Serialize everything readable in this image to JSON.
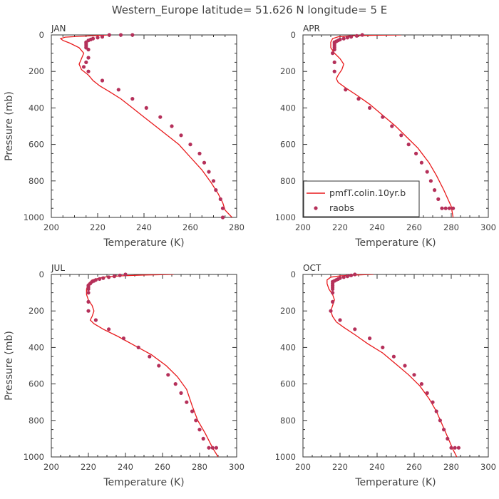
{
  "title": "Western_Europe  latitude= 51.626 N longitude= 5 E",
  "colors": {
    "model": "#e8191b",
    "obs": "#b5305a",
    "axis": "#333333"
  },
  "legend": {
    "model_label": "pmfT.colin.10yr.b",
    "obs_label": "raobs",
    "placement": "lower-left of APR panel"
  },
  "chart_data": [
    {
      "type": "line",
      "panel": "JAN",
      "xlabel": "Temperature (K)",
      "ylabel": "Pressure (mb)",
      "xlim": [
        200,
        280
      ],
      "ylim": [
        1000,
        0
      ],
      "xticks": [
        "200",
        "220",
        "240",
        "260",
        "280"
      ],
      "yticks": [
        "0",
        "200",
        "400",
        "600",
        "800",
        "1000"
      ],
      "series": [
        {
          "name": "pmfT.colin.10yr.b",
          "kind": "line",
          "x": [
            225,
            212,
            206,
            204,
            205,
            208,
            212,
            214,
            213,
            212,
            213,
            216,
            218,
            221,
            225,
            230,
            235,
            240,
            245,
            250,
            255,
            260,
            265,
            269,
            272,
            274,
            275,
            278
          ],
          "y": [
            0,
            8,
            12,
            20,
            30,
            45,
            70,
            100,
            130,
            160,
            190,
            220,
            250,
            280,
            310,
            350,
            400,
            450,
            500,
            550,
            600,
            670,
            740,
            810,
            870,
            920,
            960,
            1000
          ]
        },
        {
          "name": "raobs",
          "kind": "points",
          "x": [
            235,
            230,
            225,
            222,
            220,
            218,
            217,
            216,
            215,
            215,
            215,
            215,
            216,
            216,
            215,
            214,
            216,
            222,
            229,
            235,
            241,
            247,
            252,
            256,
            260,
            264,
            266,
            268,
            270,
            271,
            273,
            274,
            274
          ],
          "y": [
            0,
            0,
            0,
            10,
            15,
            20,
            25,
            30,
            40,
            50,
            60,
            70,
            80,
            125,
            150,
            175,
            200,
            250,
            300,
            350,
            400,
            450,
            500,
            550,
            600,
            650,
            700,
            750,
            800,
            850,
            900,
            950,
            1000
          ]
        }
      ]
    },
    {
      "type": "line",
      "panel": "APR",
      "xlabel": "Temperature (K)",
      "ylabel": "",
      "xlim": [
        200,
        300
      ],
      "ylim": [
        1000,
        0
      ],
      "xticks": [
        "200",
        "220",
        "240",
        "260",
        "280",
        "300"
      ],
      "yticks": [
        "0",
        "200",
        "400",
        "600",
        "800",
        "1000"
      ],
      "series": [
        {
          "name": "pmfT.colin.10yr.b",
          "kind": "line",
          "x": [
            253,
            238,
            225,
            219,
            216,
            215,
            215,
            217,
            220,
            222,
            221,
            219,
            218,
            219,
            223,
            229,
            236,
            243,
            250,
            256,
            262,
            268,
            272,
            276,
            280,
            281
          ],
          "y": [
            0,
            2,
            5,
            10,
            20,
            40,
            70,
            100,
            130,
            160,
            190,
            220,
            240,
            260,
            290,
            330,
            380,
            440,
            500,
            560,
            620,
            700,
            770,
            850,
            940,
            1000
          ]
        },
        {
          "name": "raobs",
          "kind": "points",
          "x": [
            232,
            229,
            226,
            224,
            222,
            220,
            219,
            218,
            217,
            217,
            217,
            217,
            217,
            216,
            217,
            217,
            223,
            230,
            236,
            243,
            248,
            253,
            257,
            261,
            264,
            267,
            269,
            271,
            273,
            275,
            277,
            279,
            281
          ],
          "y": [
            0,
            5,
            10,
            15,
            20,
            25,
            30,
            35,
            40,
            50,
            60,
            70,
            80,
            100,
            150,
            200,
            300,
            350,
            400,
            450,
            500,
            550,
            600,
            650,
            700,
            750,
            800,
            850,
            900,
            950,
            950,
            950,
            950
          ]
        }
      ]
    },
    {
      "type": "line",
      "panel": "JUL",
      "xlabel": "Temperature (K)",
      "ylabel": "Pressure (mb)",
      "xlim": [
        200,
        300
      ],
      "ylim": [
        1000,
        0
      ],
      "xticks": [
        "200",
        "220",
        "240",
        "260",
        "280",
        "300"
      ],
      "yticks": [
        "0",
        "200",
        "400",
        "600",
        "800",
        "1000"
      ],
      "series": [
        {
          "name": "pmfT.colin.10yr.b",
          "kind": "line",
          "x": [
            266,
            250,
            237,
            228,
            222,
            220,
            219,
            219,
            220,
            222,
            223,
            222,
            221,
            223,
            228,
            236,
            245,
            254,
            262,
            268,
            273,
            276,
            279,
            283,
            287,
            290
          ],
          "y": [
            0,
            3,
            8,
            15,
            30,
            50,
            80,
            110,
            140,
            170,
            200,
            230,
            250,
            270,
            300,
            340,
            390,
            440,
            500,
            560,
            630,
            720,
            800,
            870,
            950,
            1000
          ]
        },
        {
          "name": "raobs",
          "kind": "points",
          "x": [
            240,
            237,
            234,
            231,
            228,
            226,
            224,
            223,
            222,
            221,
            220,
            220,
            220,
            220,
            220,
            220,
            224,
            231,
            239,
            247,
            253,
            258,
            263,
            267,
            270,
            273,
            276,
            278,
            280,
            282,
            285,
            287,
            289
          ],
          "y": [
            0,
            5,
            10,
            15,
            20,
            25,
            30,
            35,
            40,
            50,
            60,
            70,
            80,
            100,
            150,
            200,
            250,
            300,
            350,
            400,
            450,
            500,
            550,
            600,
            650,
            700,
            750,
            800,
            850,
            900,
            950,
            950,
            950
          ]
        }
      ]
    },
    {
      "type": "line",
      "panel": "OCT",
      "xlabel": "Temperature (K)",
      "ylabel": "",
      "xlim": [
        200,
        300
      ],
      "ylim": [
        1000,
        0
      ],
      "xticks": [
        "200",
        "220",
        "240",
        "260",
        "280",
        "300"
      ],
      "yticks": [
        "0",
        "200",
        "400",
        "600",
        "800",
        "1000"
      ],
      "series": [
        {
          "name": "pmfT.colin.10yr.b",
          "kind": "line",
          "x": [
            238,
            228,
            220,
            215,
            213,
            213,
            214,
            216,
            217,
            216,
            215,
            216,
            218,
            222,
            228,
            235,
            243,
            250,
            257,
            263,
            268,
            272,
            275,
            278,
            281,
            283
          ],
          "y": [
            0,
            3,
            8,
            15,
            30,
            50,
            80,
            110,
            140,
            170,
            200,
            230,
            260,
            290,
            330,
            380,
            430,
            490,
            550,
            610,
            680,
            750,
            820,
            890,
            960,
            1000
          ]
        },
        {
          "name": "raobs",
          "kind": "points",
          "x": [
            228,
            226,
            224,
            222,
            220,
            219,
            218,
            217,
            216,
            216,
            216,
            216,
            216,
            216,
            216,
            215,
            220,
            228,
            236,
            243,
            249,
            255,
            260,
            264,
            267,
            270,
            272,
            274,
            276,
            278,
            280,
            282,
            284
          ],
          "y": [
            0,
            5,
            10,
            15,
            20,
            25,
            30,
            35,
            40,
            50,
            60,
            70,
            80,
            100,
            150,
            200,
            250,
            300,
            350,
            400,
            450,
            500,
            550,
            600,
            650,
            700,
            750,
            800,
            850,
            900,
            950,
            950,
            950
          ]
        }
      ]
    }
  ]
}
